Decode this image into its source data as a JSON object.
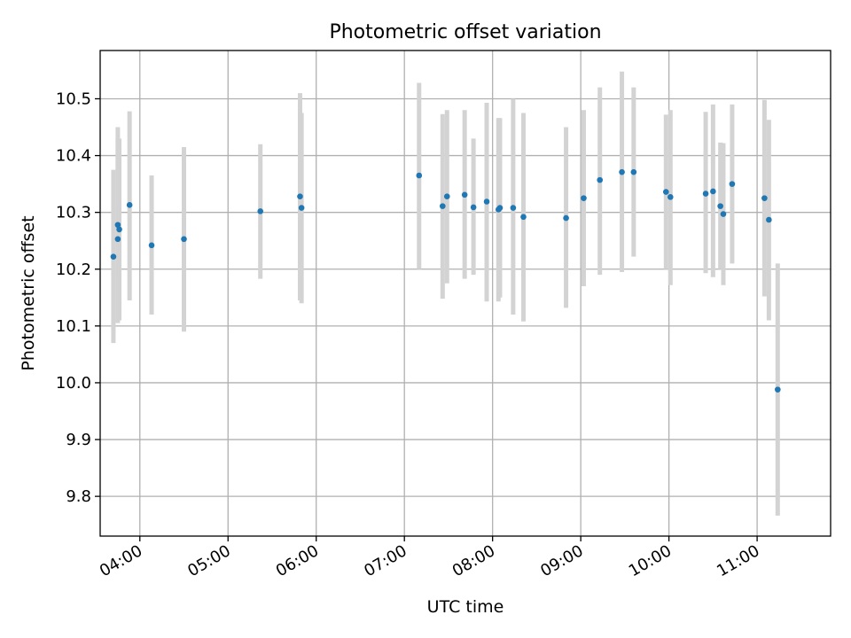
{
  "chart_data": {
    "type": "scatter",
    "title": "Photometric offset variation",
    "xlabel": "UTC time",
    "ylabel": "Photometric offset",
    "xlim": [
      "03:33",
      "11:50"
    ],
    "ylim": [
      9.73,
      10.585
    ],
    "x_ticks": [
      "04:00",
      "05:00",
      "06:00",
      "07:00",
      "08:00",
      "09:00",
      "10:00",
      "11:00"
    ],
    "y_ticks": [
      "9.8",
      "9.9",
      "10.0",
      "10.1",
      "10.2",
      "10.3",
      "10.4",
      "10.5"
    ],
    "grid": true,
    "error_bars": true,
    "marker_color": "#1f77b4",
    "errorbar_color": "#d3d3d3",
    "points": [
      {
        "x": "03:42",
        "y": 10.222,
        "ylow": 10.07,
        "yhigh": 10.375
      },
      {
        "x": "03:45",
        "y": 10.278,
        "ylow": 10.105,
        "yhigh": 10.45
      },
      {
        "x": "03:45",
        "y": 10.253,
        "ylow": 10.11,
        "yhigh": 10.43
      },
      {
        "x": "03:46",
        "y": 10.27,
        "ylow": 10.11,
        "yhigh": 10.43
      },
      {
        "x": "03:53",
        "y": 10.313,
        "ylow": 10.145,
        "yhigh": 10.478
      },
      {
        "x": "04:08",
        "y": 10.242,
        "ylow": 10.12,
        "yhigh": 10.365
      },
      {
        "x": "04:30",
        "y": 10.253,
        "ylow": 10.09,
        "yhigh": 10.415
      },
      {
        "x": "05:22",
        "y": 10.302,
        "ylow": 10.183,
        "yhigh": 10.42
      },
      {
        "x": "05:49",
        "y": 10.328,
        "ylow": 10.145,
        "yhigh": 10.51
      },
      {
        "x": "05:50",
        "y": 10.308,
        "ylow": 10.14,
        "yhigh": 10.475
      },
      {
        "x": "07:10",
        "y": 10.365,
        "ylow": 10.2,
        "yhigh": 10.528
      },
      {
        "x": "07:26",
        "y": 10.311,
        "ylow": 10.148,
        "yhigh": 10.473
      },
      {
        "x": "07:29",
        "y": 10.328,
        "ylow": 10.175,
        "yhigh": 10.48
      },
      {
        "x": "07:41",
        "y": 10.331,
        "ylow": 10.183,
        "yhigh": 10.48
      },
      {
        "x": "07:47",
        "y": 10.309,
        "ylow": 10.19,
        "yhigh": 10.43
      },
      {
        "x": "07:56",
        "y": 10.319,
        "ylow": 10.143,
        "yhigh": 10.493
      },
      {
        "x": "08:04",
        "y": 10.305,
        "ylow": 10.143,
        "yhigh": 10.466
      },
      {
        "x": "08:05",
        "y": 10.308,
        "ylow": 10.15,
        "yhigh": 10.466
      },
      {
        "x": "08:14",
        "y": 10.308,
        "ylow": 10.12,
        "yhigh": 10.5
      },
      {
        "x": "08:21",
        "y": 10.292,
        "ylow": 10.108,
        "yhigh": 10.475
      },
      {
        "x": "08:50",
        "y": 10.29,
        "ylow": 10.132,
        "yhigh": 10.45
      },
      {
        "x": "09:02",
        "y": 10.325,
        "ylow": 10.17,
        "yhigh": 10.48
      },
      {
        "x": "09:13",
        "y": 10.357,
        "ylow": 10.19,
        "yhigh": 10.52
      },
      {
        "x": "09:28",
        "y": 10.371,
        "ylow": 10.195,
        "yhigh": 10.548
      },
      {
        "x": "09:36",
        "y": 10.371,
        "ylow": 10.222,
        "yhigh": 10.52
      },
      {
        "x": "09:58",
        "y": 10.336,
        "ylow": 10.2,
        "yhigh": 10.472
      },
      {
        "x": "10:01",
        "y": 10.327,
        "ylow": 10.172,
        "yhigh": 10.48
      },
      {
        "x": "10:25",
        "y": 10.333,
        "ylow": 10.193,
        "yhigh": 10.477
      },
      {
        "x": "10:30",
        "y": 10.337,
        "ylow": 10.186,
        "yhigh": 10.49
      },
      {
        "x": "10:35",
        "y": 10.311,
        "ylow": 10.2,
        "yhigh": 10.423
      },
      {
        "x": "10:37",
        "y": 10.297,
        "ylow": 10.172,
        "yhigh": 10.422
      },
      {
        "x": "10:43",
        "y": 10.35,
        "ylow": 10.21,
        "yhigh": 10.49
      },
      {
        "x": "11:05",
        "y": 10.325,
        "ylow": 10.152,
        "yhigh": 10.498
      },
      {
        "x": "11:08",
        "y": 10.287,
        "ylow": 10.11,
        "yhigh": 10.463
      },
      {
        "x": "11:14",
        "y": 9.988,
        "ylow": 9.766,
        "yhigh": 10.21
      }
    ]
  }
}
